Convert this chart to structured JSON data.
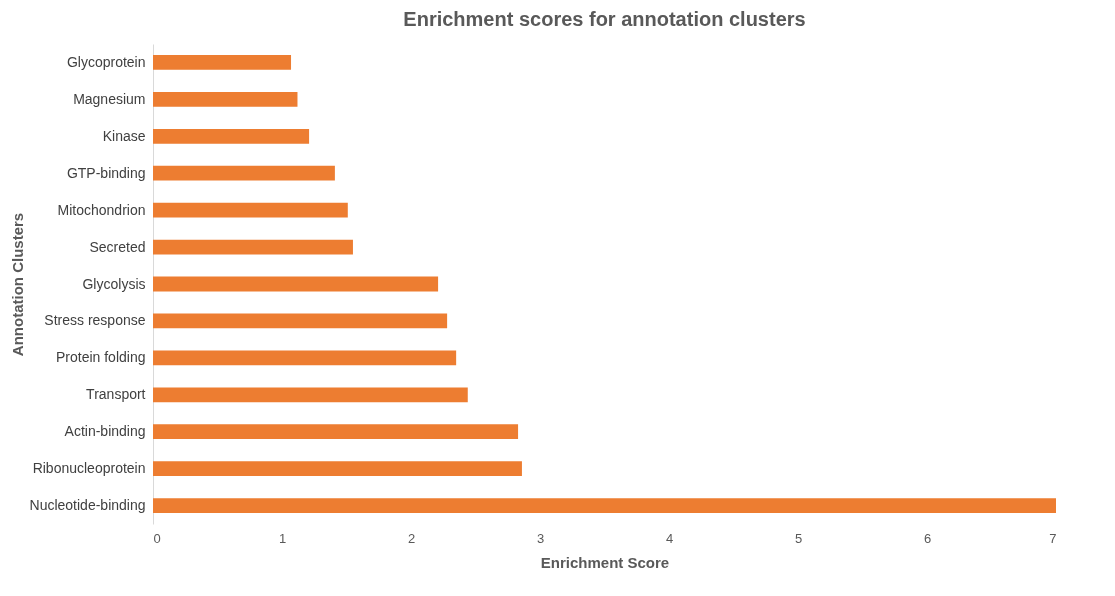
{
  "chart_data": {
    "type": "bar",
    "orientation": "horizontal",
    "title": "Enrichment scores for annotation clusters",
    "xlabel": "Enrichment Score",
    "ylabel": "Annotation Clusters",
    "categories": [
      "Glycoprotein",
      "Magnesium",
      "Kinase",
      "GTP-binding",
      "Mitochondrion",
      "Secreted",
      "Glycolysis",
      "Stress response",
      "Protein folding",
      "Transport",
      "Actin-binding",
      "Ribonucleoprotein",
      "Nucleotide-binding"
    ],
    "values": [
      1.07,
      1.12,
      1.21,
      1.41,
      1.51,
      1.55,
      2.21,
      2.28,
      2.35,
      2.44,
      2.83,
      2.86,
      7.0
    ],
    "color": "#ed7d31",
    "xlim": [
      0,
      7
    ],
    "xticks": [
      0,
      1,
      2,
      3,
      4,
      5,
      6,
      7
    ],
    "grid": false
  }
}
